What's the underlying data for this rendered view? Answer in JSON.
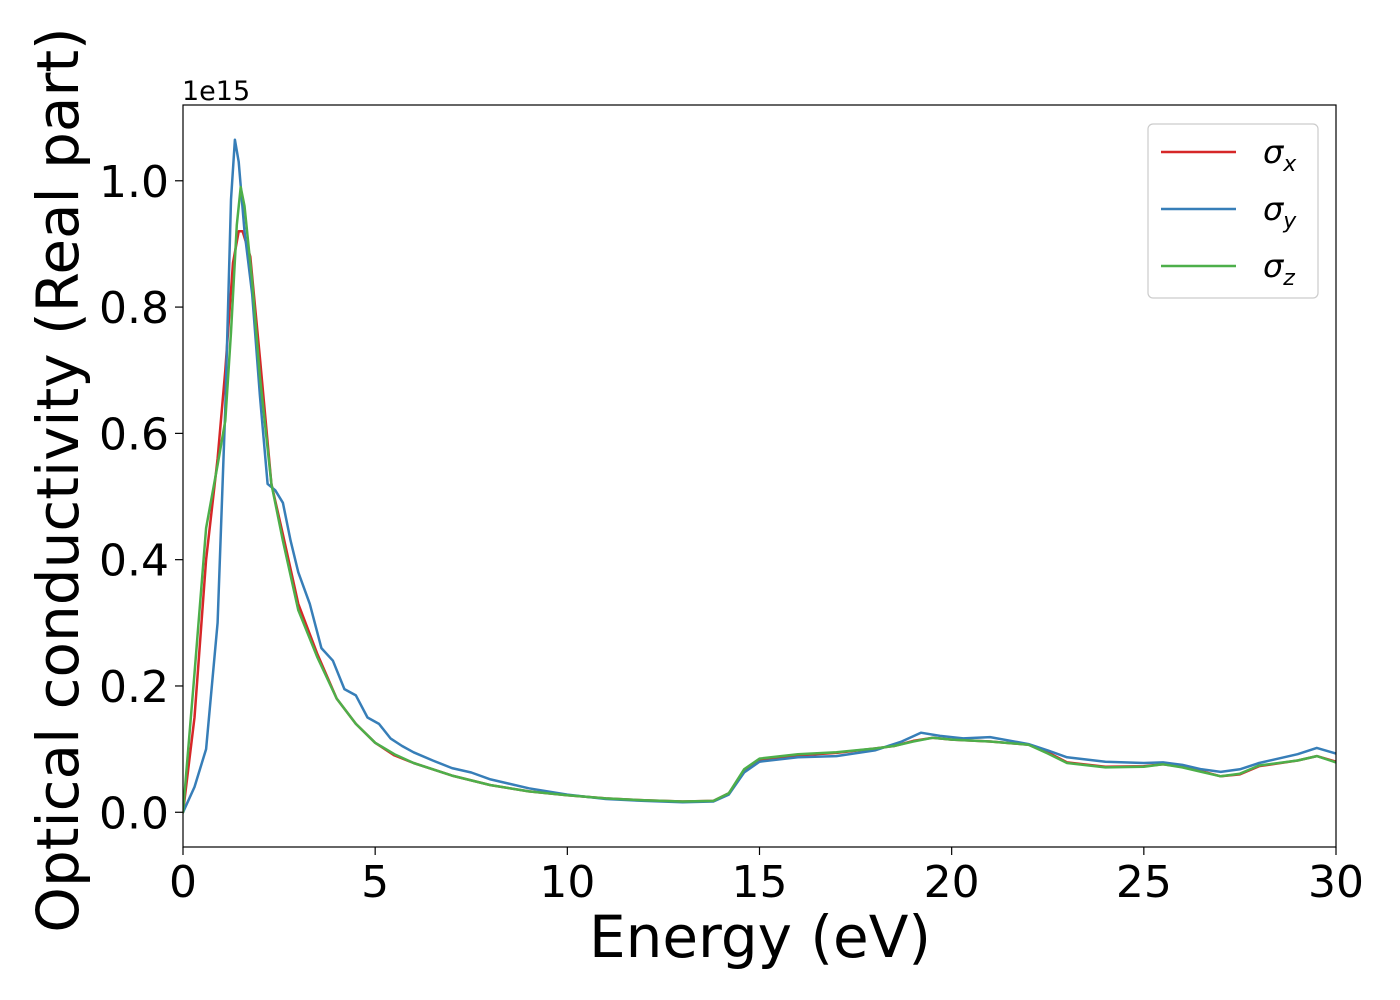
{
  "chart_data": {
    "type": "line",
    "xlabel": "Energy (eV)",
    "ylabel": "Optical conductivity (Real part)",
    "y_offset_label": "1e15",
    "xlim": [
      0,
      30
    ],
    "ylim": [
      -0.055,
      1.12
    ],
    "x_ticks": [
      0,
      5,
      10,
      15,
      20,
      25,
      30
    ],
    "x_tick_labels": [
      "0",
      "5",
      "10",
      "15",
      "20",
      "25",
      "30"
    ],
    "y_ticks": [
      0.0,
      0.2,
      0.4,
      0.6,
      0.8,
      1.0
    ],
    "y_tick_labels": [
      "0.0",
      "0.2",
      "0.4",
      "0.6",
      "0.8",
      "1.0"
    ],
    "grid": false,
    "legend_position": "top-right",
    "series": [
      {
        "name": "σx",
        "symbol": "σ",
        "subscript": "x",
        "color": "#d62728",
        "x": [
          0,
          0.3,
          0.6,
          0.9,
          1.1,
          1.3,
          1.45,
          1.55,
          1.75,
          2.0,
          2.3,
          2.6,
          3.0,
          3.5,
          4.0,
          4.5,
          5.0,
          5.5,
          6.0,
          7.0,
          8.0,
          9.0,
          10.0,
          11.0,
          12.0,
          13.0,
          13.8,
          14.2,
          14.6,
          15.0,
          16.0,
          17.0,
          18.0,
          18.5,
          19.0,
          19.5,
          20.0,
          21.0,
          22.0,
          22.5,
          23.0,
          24.0,
          25.0,
          25.5,
          26.0,
          26.5,
          27.0,
          27.5,
          28.0,
          29.0,
          29.5,
          30.0
        ],
        "y": [
          0.0,
          0.15,
          0.4,
          0.56,
          0.7,
          0.87,
          0.92,
          0.92,
          0.88,
          0.72,
          0.52,
          0.44,
          0.33,
          0.25,
          0.18,
          0.14,
          0.11,
          0.09,
          0.078,
          0.058,
          0.043,
          0.033,
          0.027,
          0.022,
          0.019,
          0.017,
          0.018,
          0.03,
          0.065,
          0.082,
          0.09,
          0.094,
          0.101,
          0.105,
          0.113,
          0.118,
          0.115,
          0.112,
          0.107,
          0.095,
          0.079,
          0.072,
          0.073,
          0.076,
          0.072,
          0.065,
          0.057,
          0.06,
          0.073,
          0.082,
          0.089,
          0.08
        ]
      },
      {
        "name": "σy",
        "symbol": "σ",
        "subscript": "y",
        "color": "#377eb8",
        "x": [
          0,
          0.3,
          0.6,
          0.9,
          1.1,
          1.25,
          1.35,
          1.45,
          1.6,
          1.8,
          2.0,
          2.2,
          2.4,
          2.6,
          2.8,
          3.0,
          3.3,
          3.6,
          3.9,
          4.2,
          4.5,
          4.8,
          5.1,
          5.4,
          5.7,
          6.0,
          6.5,
          7.0,
          7.5,
          8.0,
          9.0,
          10.0,
          11.0,
          12.0,
          13.0,
          13.8,
          14.2,
          14.6,
          15.0,
          16.0,
          17.0,
          18.0,
          18.7,
          19.2,
          19.7,
          20.3,
          21.0,
          22.0,
          22.5,
          23.0,
          24.0,
          25.0,
          25.5,
          26.0,
          26.5,
          27.0,
          27.5,
          28.0,
          29.0,
          29.5,
          30.0
        ],
        "y": [
          0.0,
          0.04,
          0.1,
          0.3,
          0.64,
          0.97,
          1.065,
          1.03,
          0.92,
          0.82,
          0.66,
          0.52,
          0.51,
          0.49,
          0.43,
          0.38,
          0.33,
          0.26,
          0.24,
          0.195,
          0.185,
          0.15,
          0.14,
          0.117,
          0.105,
          0.095,
          0.082,
          0.07,
          0.063,
          0.052,
          0.038,
          0.028,
          0.021,
          0.018,
          0.016,
          0.017,
          0.028,
          0.063,
          0.08,
          0.087,
          0.089,
          0.098,
          0.112,
          0.126,
          0.121,
          0.117,
          0.119,
          0.108,
          0.098,
          0.087,
          0.08,
          0.078,
          0.079,
          0.075,
          0.068,
          0.064,
          0.068,
          0.078,
          0.092,
          0.102,
          0.093
        ]
      },
      {
        "name": "σz",
        "symbol": "σ",
        "subscript": "z",
        "color": "#4daf4a",
        "x": [
          0,
          0.3,
          0.6,
          0.9,
          1.1,
          1.25,
          1.4,
          1.5,
          1.6,
          1.8,
          2.0,
          2.3,
          2.6,
          3.0,
          3.5,
          4.0,
          4.5,
          5.0,
          5.5,
          6.0,
          7.0,
          8.0,
          9.0,
          10.0,
          11.0,
          12.0,
          13.0,
          13.8,
          14.2,
          14.6,
          15.0,
          16.0,
          17.0,
          18.0,
          18.5,
          19.0,
          19.5,
          20.0,
          21.0,
          22.0,
          22.5,
          23.0,
          24.0,
          25.0,
          25.5,
          26.0,
          26.5,
          27.0,
          27.5,
          28.0,
          29.0,
          29.5,
          30.0
        ],
        "y": [
          0.0,
          0.22,
          0.45,
          0.55,
          0.62,
          0.76,
          0.93,
          0.99,
          0.96,
          0.84,
          0.69,
          0.52,
          0.43,
          0.32,
          0.245,
          0.18,
          0.14,
          0.11,
          0.092,
          0.078,
          0.058,
          0.043,
          0.033,
          0.027,
          0.022,
          0.019,
          0.017,
          0.018,
          0.03,
          0.068,
          0.085,
          0.092,
          0.095,
          0.101,
          0.105,
          0.112,
          0.118,
          0.115,
          0.112,
          0.107,
          0.093,
          0.078,
          0.071,
          0.072,
          0.076,
          0.071,
          0.064,
          0.057,
          0.061,
          0.074,
          0.082,
          0.089,
          0.079
        ]
      }
    ]
  }
}
